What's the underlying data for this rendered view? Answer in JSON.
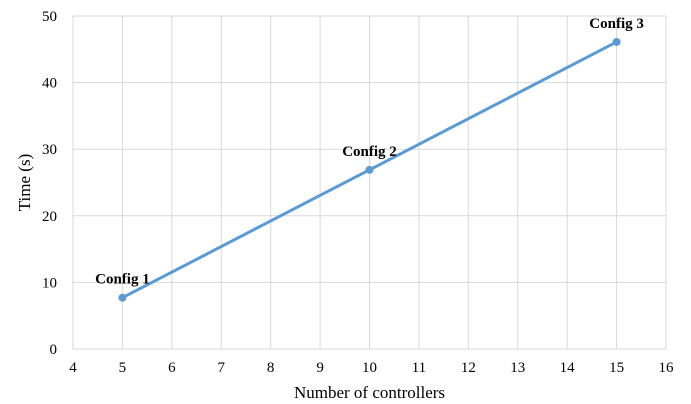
{
  "chart_data": {
    "type": "line",
    "xlabel": "Number of controllers",
    "ylabel": "Time (s)",
    "xlim": [
      4,
      16
    ],
    "ylim": [
      0,
      50
    ],
    "xticks": [
      "4",
      "5",
      "6",
      "7",
      "8",
      "9",
      "10",
      "11",
      "12",
      "13",
      "14",
      "15",
      "16"
    ],
    "yticks": [
      "0",
      "10",
      "20",
      "30",
      "40",
      "50"
    ],
    "grid": true,
    "series": [
      {
        "color": "#5b9bd5",
        "points": [
          {
            "x": 5,
            "y": 7.7,
            "label": "Config 1"
          },
          {
            "x": 10,
            "y": 26.9,
            "label": "Config 2"
          },
          {
            "x": 15,
            "y": 46.1,
            "label": "Config 3"
          }
        ]
      }
    ]
  }
}
